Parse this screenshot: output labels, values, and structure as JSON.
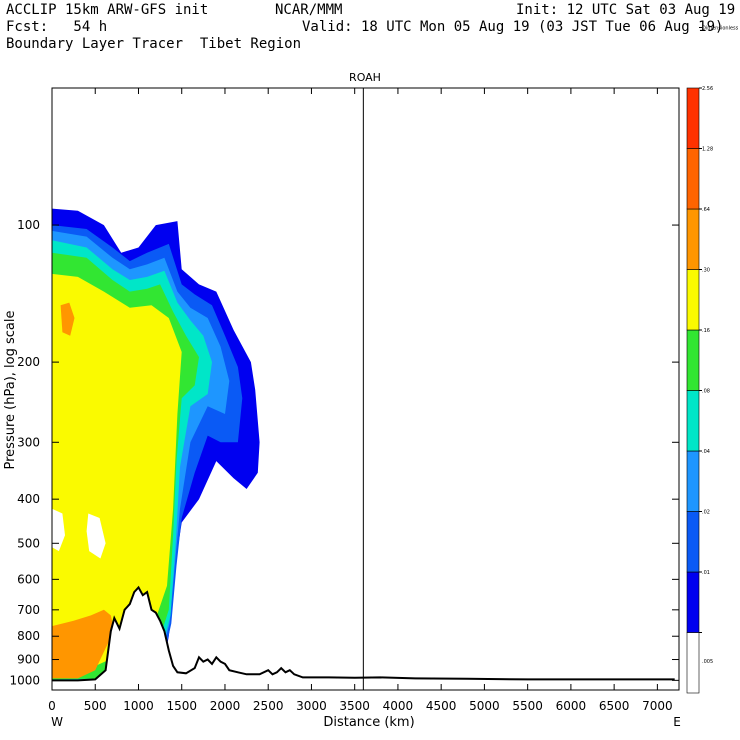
{
  "header": {
    "line1_left": "ACCLIP 15km ARW-GFS init",
    "line1_mid": "NCAR/MMM",
    "line1_right": "Init: 12 UTC Sat 03 Aug 19",
    "line2_left": "Fcst:   54 h",
    "line2_right": "Valid: 18 UTC Mon 05 Aug 19 (03 JST Tue 06 Aug 19)",
    "line3_left": "Boundary Layer Tracer  Tibet Region"
  },
  "colors": {
    "c01": "#0000f0",
    "c02": "#0a5af5",
    "c04": "#1e96ff",
    "c08": "#00e6c8",
    "c16": "#32e632",
    "c30": "#fafa00",
    "c64": "#ff9600",
    "c128": "#ff6400",
    "c256": "#ff3200",
    "terrain": "#000000"
  },
  "chart_data": {
    "type": "heatmap",
    "title": "ROAH",
    "xlabel": "Distance (km)",
    "ylabel": "Pressure (hPa), log scale",
    "x_ticks": [
      "0",
      "500",
      "1000",
      "1500",
      "2000",
      "2500",
      "3000",
      "3500",
      "4000",
      "4500",
      "5000",
      "5500",
      "6000",
      "6500",
      "7000"
    ],
    "xlim": [
      0,
      7250
    ],
    "y_ticks": [
      "100",
      "200",
      "300",
      "400",
      "500",
      "600",
      "700",
      "800",
      "900",
      "1000"
    ],
    "ylim": [
      1050,
      50
    ],
    "y_scale": "log",
    "x_end_labels": {
      "left": "W",
      "right": "E"
    },
    "vertical_marker_km": 3600,
    "colorbar": {
      "levels": [
        ".005",
        ".01",
        ".02",
        ".04",
        ".08",
        ".16",
        ".30",
        ".64",
        "1.28",
        "2.56",
        "Dimensionless"
      ],
      "colors": [
        "#ffffff",
        "#0000f0",
        "#0a5af5",
        "#1e96ff",
        "#00e6c8",
        "#32e632",
        "#fafa00",
        "#ff9600",
        "#ff6400",
        "#ff3200"
      ]
    },
    "terrain_profile": [
      [
        0,
        1000
      ],
      [
        300,
        1000
      ],
      [
        500,
        995
      ],
      [
        620,
        950
      ],
      [
        680,
        780
      ],
      [
        720,
        730
      ],
      [
        780,
        770
      ],
      [
        840,
        700
      ],
      [
        900,
        680
      ],
      [
        950,
        640
      ],
      [
        1000,
        625
      ],
      [
        1050,
        650
      ],
      [
        1100,
        640
      ],
      [
        1150,
        700
      ],
      [
        1200,
        710
      ],
      [
        1250,
        740
      ],
      [
        1300,
        780
      ],
      [
        1350,
        860
      ],
      [
        1400,
        930
      ],
      [
        1450,
        960
      ],
      [
        1550,
        965
      ],
      [
        1650,
        940
      ],
      [
        1700,
        890
      ],
      [
        1750,
        910
      ],
      [
        1800,
        900
      ],
      [
        1850,
        920
      ],
      [
        1900,
        890
      ],
      [
        1950,
        910
      ],
      [
        2000,
        920
      ],
      [
        2050,
        950
      ],
      [
        2150,
        960
      ],
      [
        2250,
        970
      ],
      [
        2400,
        970
      ],
      [
        2500,
        950
      ],
      [
        2550,
        970
      ],
      [
        2600,
        960
      ],
      [
        2650,
        940
      ],
      [
        2700,
        960
      ],
      [
        2750,
        950
      ],
      [
        2800,
        970
      ],
      [
        2900,
        985
      ],
      [
        3200,
        985
      ],
      [
        3500,
        987
      ],
      [
        3800,
        985
      ],
      [
        4200,
        990
      ],
      [
        4800,
        992
      ],
      [
        5500,
        995
      ],
      [
        6500,
        995
      ],
      [
        7200,
        995
      ]
    ],
    "tracer_shapes": [
      {
        "level": "c01",
        "pts": [
          [
            0,
            92
          ],
          [
            300,
            93
          ],
          [
            600,
            100
          ],
          [
            800,
            115
          ],
          [
            1000,
            112
          ],
          [
            1200,
            100
          ],
          [
            1450,
            98
          ],
          [
            1500,
            125
          ],
          [
            1700,
            135
          ],
          [
            1900,
            140
          ],
          [
            2100,
            170
          ],
          [
            2300,
            200
          ],
          [
            2350,
            230
          ],
          [
            2400,
            300
          ],
          [
            2380,
            350
          ],
          [
            2250,
            380
          ],
          [
            2100,
            360
          ],
          [
            1900,
            330
          ],
          [
            1700,
            400
          ],
          [
            1500,
            450
          ],
          [
            1450,
            520
          ],
          [
            1400,
            650
          ],
          [
            1350,
            800
          ],
          [
            1300,
            900
          ],
          [
            1200,
            980
          ],
          [
            1000,
            1000
          ],
          [
            0,
            1000
          ]
        ]
      },
      {
        "level": "c02",
        "pts": [
          [
            0,
            100
          ],
          [
            400,
            102
          ],
          [
            700,
            112
          ],
          [
            900,
            120
          ],
          [
            1100,
            115
          ],
          [
            1350,
            110
          ],
          [
            1500,
            135
          ],
          [
            1650,
            142
          ],
          [
            1850,
            150
          ],
          [
            2000,
            175
          ],
          [
            2150,
            205
          ],
          [
            2200,
            240
          ],
          [
            2150,
            300
          ],
          [
            1950,
            300
          ],
          [
            1800,
            290
          ],
          [
            1650,
            350
          ],
          [
            1500,
            440
          ],
          [
            1440,
            560
          ],
          [
            1380,
            750
          ],
          [
            1300,
            880
          ],
          [
            1150,
            970
          ],
          [
            900,
            1000
          ],
          [
            0,
            1000
          ]
        ]
      },
      {
        "level": "c04",
        "pts": [
          [
            0,
            103
          ],
          [
            400,
            106
          ],
          [
            700,
            118
          ],
          [
            900,
            125
          ],
          [
            1100,
            122
          ],
          [
            1300,
            118
          ],
          [
            1450,
            140
          ],
          [
            1600,
            152
          ],
          [
            1800,
            160
          ],
          [
            1950,
            185
          ],
          [
            2050,
            220
          ],
          [
            2000,
            260
          ],
          [
            1800,
            250
          ],
          [
            1600,
            300
          ],
          [
            1480,
            420
          ],
          [
            1420,
            560
          ],
          [
            1360,
            750
          ],
          [
            1250,
            900
          ],
          [
            1100,
            970
          ],
          [
            800,
            1000
          ],
          [
            0,
            1000
          ]
        ]
      },
      {
        "level": "c08",
        "pts": [
          [
            0,
            108
          ],
          [
            400,
            112
          ],
          [
            700,
            125
          ],
          [
            900,
            132
          ],
          [
            1100,
            130
          ],
          [
            1300,
            126
          ],
          [
            1450,
            148
          ],
          [
            1600,
            162
          ],
          [
            1750,
            175
          ],
          [
            1850,
            200
          ],
          [
            1800,
            235
          ],
          [
            1600,
            250
          ],
          [
            1480,
            340
          ],
          [
            1430,
            500
          ],
          [
            1370,
            720
          ],
          [
            1250,
            880
          ],
          [
            1050,
            960
          ],
          [
            700,
            1000
          ],
          [
            0,
            1000
          ]
        ]
      },
      {
        "level": "c16",
        "pts": [
          [
            0,
            115
          ],
          [
            400,
            118
          ],
          [
            700,
            132
          ],
          [
            900,
            140
          ],
          [
            1100,
            138
          ],
          [
            1250,
            135
          ],
          [
            1400,
            155
          ],
          [
            1550,
            175
          ],
          [
            1700,
            195
          ],
          [
            1650,
            225
          ],
          [
            1500,
            240
          ],
          [
            1440,
            330
          ],
          [
            1400,
            480
          ],
          [
            1350,
            700
          ],
          [
            1200,
            860
          ],
          [
            1000,
            940
          ],
          [
            600,
            990
          ],
          [
            0,
            995
          ]
        ]
      },
      {
        "level": "c30",
        "pts": [
          [
            0,
            128
          ],
          [
            300,
            130
          ],
          [
            600,
            140
          ],
          [
            900,
            152
          ],
          [
            1150,
            150
          ],
          [
            1350,
            160
          ],
          [
            1500,
            190
          ],
          [
            1450,
            260
          ],
          [
            1400,
            420
          ],
          [
            1330,
            620
          ],
          [
            1150,
            780
          ],
          [
            900,
            860
          ],
          [
            500,
            930
          ],
          [
            0,
            950
          ]
        ]
      },
      {
        "level": "c64",
        "pts": [
          [
            0,
            760
          ],
          [
            250,
            740
          ],
          [
            450,
            720
          ],
          [
            600,
            700
          ],
          [
            680,
            720
          ],
          [
            720,
            780
          ],
          [
            620,
            850
          ],
          [
            500,
            950
          ],
          [
            300,
            990
          ],
          [
            0,
            990
          ]
        ]
      },
      {
        "level": "c64",
        "pts": [
          [
            100,
            150
          ],
          [
            200,
            148
          ],
          [
            260,
            160
          ],
          [
            210,
            175
          ],
          [
            120,
            172
          ]
        ]
      }
    ],
    "white_holes": [
      [
        [
          420,
          430
        ],
        [
          550,
          440
        ],
        [
          620,
          500
        ],
        [
          560,
          540
        ],
        [
          430,
          520
        ],
        [
          400,
          470
        ]
      ],
      [
        [
          0,
          420
        ],
        [
          120,
          430
        ],
        [
          150,
          480
        ],
        [
          80,
          520
        ],
        [
          0,
          510
        ]
      ]
    ]
  }
}
